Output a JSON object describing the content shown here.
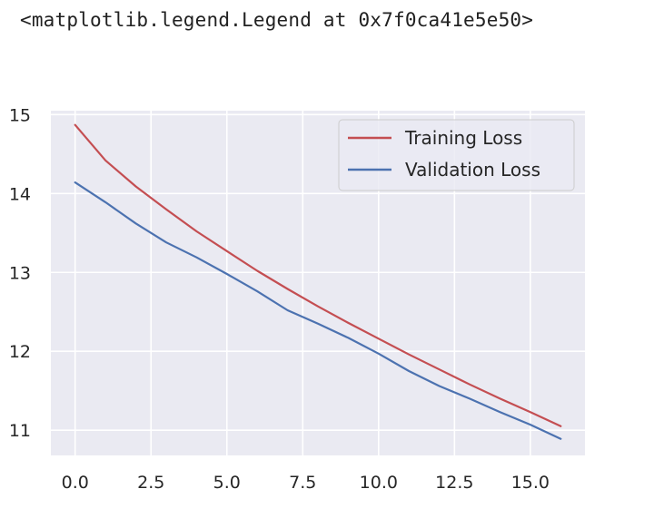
{
  "output": {
    "text": "<matplotlib.legend.Legend at 0x7f0ca41e5e50>"
  },
  "colors": {
    "plot_background": "#eaeaf2",
    "grid": "#ffffff",
    "training": "#c44e52",
    "validation": "#4c72b0"
  },
  "chart_data": {
    "type": "line",
    "title": "",
    "xlabel": "",
    "ylabel": "",
    "grid": true,
    "xlim": [
      -0.8,
      16.8
    ],
    "ylim": [
      10.68,
      15.05
    ],
    "xticks": [
      0.0,
      2.5,
      5.0,
      7.5,
      10.0,
      12.5,
      15.0
    ],
    "xtick_labels": [
      "0.0",
      "2.5",
      "5.0",
      "7.5",
      "10.0",
      "12.5",
      "15.0"
    ],
    "yticks": [
      11,
      12,
      13,
      14,
      15
    ],
    "ytick_labels": [
      "11",
      "12",
      "13",
      "14",
      "15"
    ],
    "legend_position": "top-right",
    "x": [
      0,
      1,
      2,
      3,
      4,
      5,
      6,
      7,
      8,
      9,
      10,
      11,
      12,
      13,
      14,
      15,
      16
    ],
    "series": [
      {
        "name": "Training Loss",
        "color_key": "training",
        "values": [
          14.87,
          14.42,
          14.09,
          13.8,
          13.52,
          13.27,
          13.02,
          12.79,
          12.57,
          12.36,
          12.16,
          11.96,
          11.77,
          11.58,
          11.4,
          11.23,
          11.05
        ]
      },
      {
        "name": "Validation Loss",
        "color_key": "validation",
        "values": [
          14.14,
          13.89,
          13.62,
          13.38,
          13.19,
          12.98,
          12.76,
          12.52,
          12.35,
          12.17,
          11.97,
          11.75,
          11.56,
          11.4,
          11.23,
          11.07,
          10.89
        ]
      }
    ]
  }
}
